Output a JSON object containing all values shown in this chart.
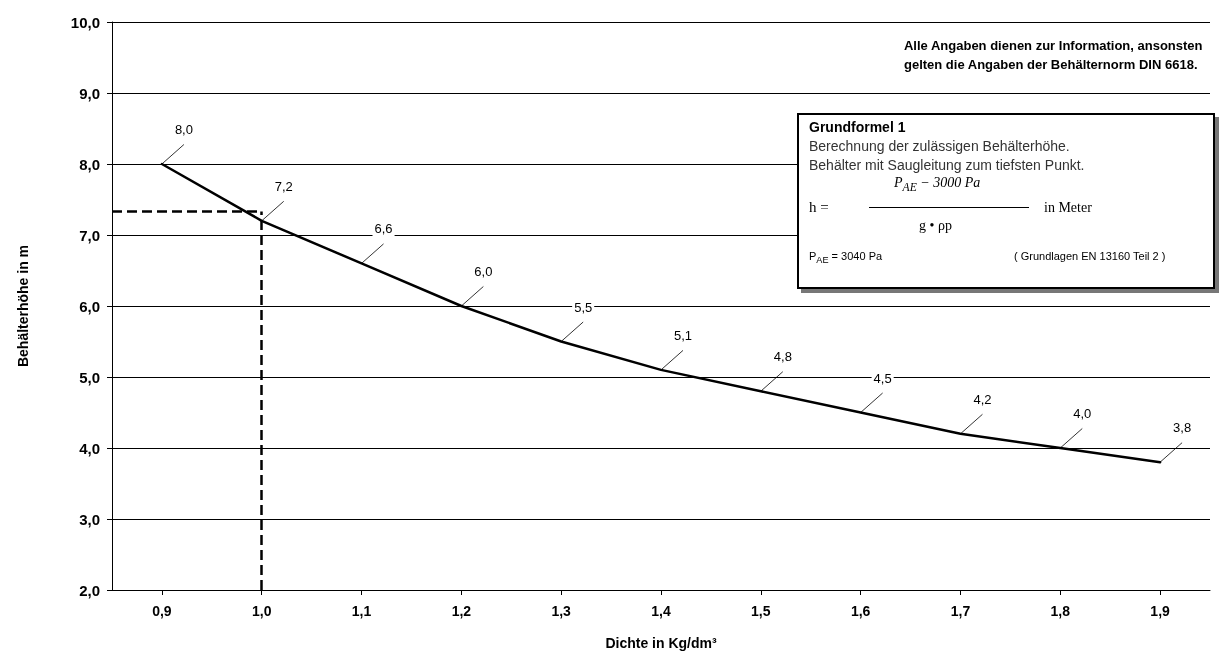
{
  "chart_data": {
    "type": "line",
    "xlabel": "Dichte in Kg/dm³",
    "ylabel": "Behälterhöhe in m",
    "x": [
      0.9,
      1.0,
      1.1,
      1.2,
      1.3,
      1.4,
      1.5,
      1.6,
      1.7,
      1.8,
      1.9
    ],
    "series": [
      {
        "color": "#000000",
        "values": [
          8.0,
          7.2,
          6.6,
          6.0,
          5.5,
          5.1,
          4.8,
          4.5,
          4.2,
          4.0,
          3.8
        ],
        "value_labels": [
          "8,0",
          "7,2",
          "6,6",
          "6,0",
          "5,5",
          "5,1",
          "4,8",
          "4,5",
          "4,2",
          "4,0",
          "3,8"
        ]
      }
    ],
    "xlim": [
      0.85,
      1.95
    ],
    "xticks": [
      {
        "value": 0.9,
        "label": "0,9"
      },
      {
        "value": 1.0,
        "label": "1,0"
      },
      {
        "value": 1.1,
        "label": "1,1"
      },
      {
        "value": 1.2,
        "label": "1,2"
      },
      {
        "value": 1.3,
        "label": "1,3"
      },
      {
        "value": 1.4,
        "label": "1,4"
      },
      {
        "value": 1.5,
        "label": "1,5"
      },
      {
        "value": 1.6,
        "label": "1,6"
      },
      {
        "value": 1.7,
        "label": "1,7"
      },
      {
        "value": 1.8,
        "label": "1,8"
      },
      {
        "value": 1.9,
        "label": "1,9"
      }
    ],
    "ylim": [
      2,
      10
    ],
    "yticks": [
      {
        "value": 2,
        "label": "2,0"
      },
      {
        "value": 3,
        "label": "3,0"
      },
      {
        "value": 4,
        "label": "4,0"
      },
      {
        "value": 5,
        "label": "5,0"
      },
      {
        "value": 6,
        "label": "6,0"
      },
      {
        "value": 7,
        "label": "7,0"
      },
      {
        "value": 8,
        "label": "8,0"
      },
      {
        "value": 9,
        "label": "9,0"
      },
      {
        "value": 10,
        "label": "10,0"
      }
    ],
    "grid": "y",
    "marker": "none",
    "line_style": "solid",
    "ref_lines": [
      {
        "axis": "x",
        "value": 1.0,
        "line_style": "dashed",
        "color": "#000000"
      },
      {
        "axis": "y",
        "value": 7.33,
        "line_style": "dashed",
        "color": "#000000"
      }
    ],
    "annotations": [
      "Alle Angaben dienen zur Information, ansonsten\ngelten die Angaben der Behälternorm DIN 6618.",
      "Grundformel 1",
      "Berechnung der zulässigen Behälterhöhe.",
      "Behälter mit Saugleitung zum tiefsten Punkt.",
      "h  =",
      "P$_{AE}$ − 3000 Pa",
      "g  •  ρp",
      "in  Meter",
      "P$_{AE}$ = 3040 Pa",
      "( Grundlagen  EN 13160 Teil 2 )"
    ]
  }
}
